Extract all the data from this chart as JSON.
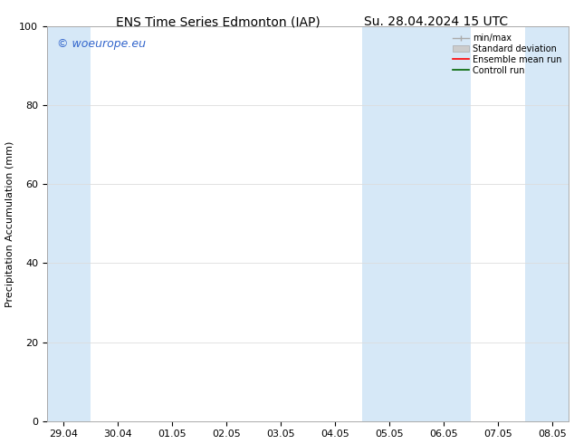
{
  "title_left": "ENS Time Series Edmonton (IAP)",
  "title_right": "Su. 28.04.2024 15 UTC",
  "ylabel": "Precipitation Accumulation (mm)",
  "ylim": [
    0,
    100
  ],
  "shade_color": "#d6e8f7",
  "watermark_text": "© woeurope.eu",
  "watermark_color": "#3366cc",
  "bg_color": "#ffffff",
  "title_fontsize": 10,
  "ylabel_fontsize": 8,
  "tick_fontsize": 8,
  "xtick_labels": [
    "29.04",
    "30.04",
    "01.05",
    "02.05",
    "03.05",
    "04.05",
    "05.05",
    "06.05",
    "07.05",
    "08.05"
  ],
  "shaded_bands": [
    {
      "xmin": 0,
      "xmax": 1
    },
    {
      "xmin": 6,
      "xmax": 8
    },
    {
      "xmin": 9,
      "xmax": 10
    }
  ],
  "yticks": [
    0,
    20,
    40,
    60,
    80,
    100
  ]
}
